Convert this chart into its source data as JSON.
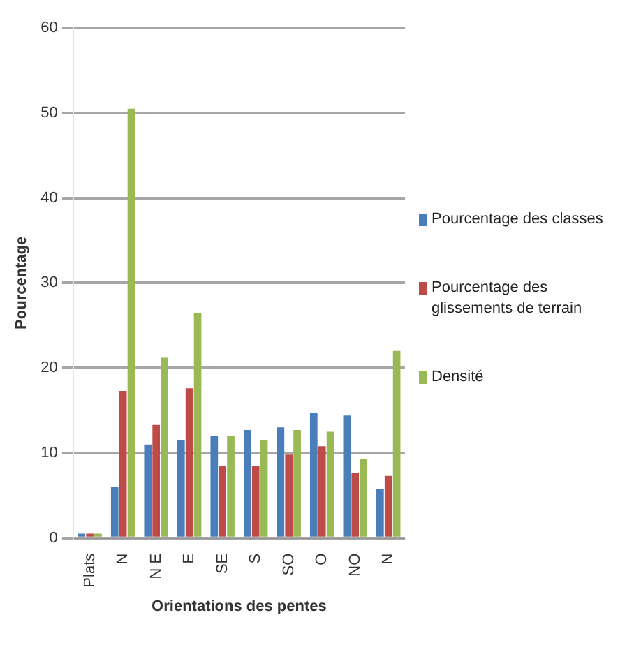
{
  "chart_data": {
    "type": "bar",
    "xlabel": "Orientations des pentes",
    "ylabel": "Pourcentage",
    "categories": [
      "Plats",
      "N",
      "N E",
      "E",
      "SE",
      "S",
      "SO",
      "O",
      "NO",
      "N"
    ],
    "series": [
      {
        "name": "Pourcentage des classes",
        "color": "#4a7ebb",
        "values": [
          0.5,
          6,
          11,
          11.5,
          12,
          12.7,
          13,
          14.7,
          14.4,
          5.8
        ]
      },
      {
        "name": "Pourcentage des glissements de terrain",
        "color": "#be4b48",
        "values": [
          0.5,
          17.3,
          13.3,
          17.6,
          8.5,
          8.5,
          9.8,
          10.8,
          7.7,
          7.3
        ]
      },
      {
        "name": "Densité",
        "color": "#98b954",
        "values": [
          0.5,
          50.5,
          21.2,
          26.5,
          12,
          11.5,
          12.7,
          12.5,
          9.3,
          22
        ]
      }
    ],
    "ylim": [
      0,
      60
    ],
    "yticks": [
      0,
      10,
      20,
      30,
      40,
      50,
      60
    ],
    "grid": "y",
    "legend": "right"
  }
}
